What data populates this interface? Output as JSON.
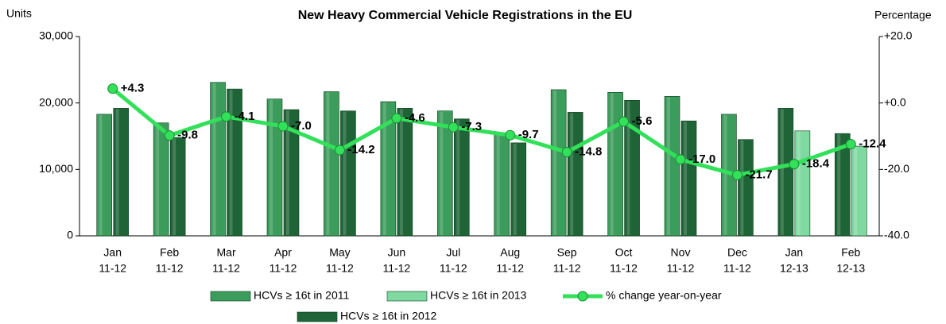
{
  "chart_data": {
    "type": "bar_line",
    "title": "New Heavy Commercial Vehicle Registrations in the EU",
    "y_label": "Units",
    "y2_label": "Percentage",
    "categories": [
      [
        "Jan",
        "11-12"
      ],
      [
        "Feb",
        "11-12"
      ],
      [
        "Mar",
        "11-12"
      ],
      [
        "Apr",
        "11-12"
      ],
      [
        "May",
        "11-12"
      ],
      [
        "Jun",
        "11-12"
      ],
      [
        "Jul",
        "11-12"
      ],
      [
        "Aug",
        "11-12"
      ],
      [
        "Sep",
        "11-12"
      ],
      [
        "Oct",
        "11-12"
      ],
      [
        "Nov",
        "11-12"
      ],
      [
        "Dec",
        "11-12"
      ],
      [
        "Jan",
        "12-13"
      ],
      [
        "Feb",
        "12-13"
      ]
    ],
    "series": [
      {
        "name": "HCVs ≥ 16t in 2011",
        "color": "#3c9c5c",
        "values": [
          18300,
          17000,
          23100,
          20600,
          21700,
          20200,
          18800,
          15500,
          22000,
          21600,
          21000,
          18300,
          null,
          null
        ]
      },
      {
        "name": "HCVs ≥ 16t in 2012",
        "color": "#1e6436",
        "values": [
          19200,
          14800,
          22100,
          19000,
          18800,
          19200,
          17600,
          14000,
          18600,
          20400,
          17300,
          14500,
          19200,
          15400
        ]
      },
      {
        "name": "HCVs ≥ 16t in 2013",
        "color": "#7fd9a0",
        "values": [
          null,
          null,
          null,
          null,
          null,
          null,
          null,
          null,
          null,
          null,
          null,
          null,
          15800,
          13500
        ]
      },
      {
        "name": "% change year-on-year",
        "color": "#33e05a",
        "axis": "y2",
        "type": "line",
        "values": [
          4.3,
          -9.8,
          -4.1,
          -7.0,
          -14.2,
          -4.6,
          -7.3,
          -9.7,
          -14.8,
          -5.6,
          -17.0,
          -21.7,
          -18.4,
          -12.4
        ],
        "value_labels": [
          "+4.3",
          "-9.8",
          "-4.1",
          "-7.0",
          "-14.2",
          "-4.6",
          "-7.3",
          "-9.7",
          "-14.8",
          "-5.6",
          "-17.0",
          "-21.7",
          "-18.4",
          "-12.4"
        ]
      }
    ],
    "ylim": [
      0,
      30000
    ],
    "yticks": [
      0,
      {
        "value": 10000,
        "label": "10,000"
      },
      {
        "value": 20000,
        "label": "20,000"
      },
      {
        "value": 30000,
        "label": "30,000"
      }
    ],
    "y2lim": [
      -40,
      20
    ],
    "y2ticks": [
      {
        "value": -40,
        "label": "-40.0"
      },
      {
        "value": -20,
        "label": "-20.0"
      },
      {
        "value": 0,
        "label": "+0.0"
      },
      {
        "value": 20,
        "label": "+20.0"
      }
    ]
  }
}
